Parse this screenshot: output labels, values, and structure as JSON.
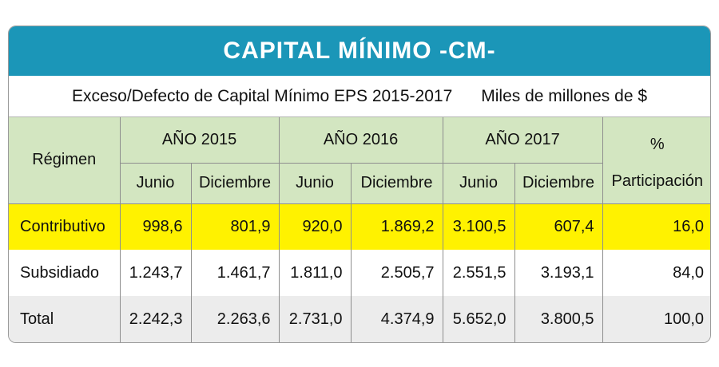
{
  "title": "CAPITAL MÍNIMO -CM-",
  "subtitle": "Exceso/Defecto de Capital Mínimo  EPS 2015-2017",
  "unit_note": "Miles de millones de $",
  "headers": {
    "regimen": "Régimen",
    "years": [
      "AÑO 2015",
      "AÑO 2016",
      "AÑO 2017"
    ],
    "periods": [
      "Junio",
      "Diciembre",
      "Junio",
      "Diciembre",
      "Junio",
      "Diciembre"
    ],
    "pct_symbol": "%",
    "participation": "Participación"
  },
  "rows": [
    {
      "label": "Contributivo",
      "values": [
        "998,6",
        "801,9",
        "920,0",
        "1.869,2",
        "3.100,5",
        "607,4"
      ],
      "pct": "16,0"
    },
    {
      "label": "Subsidiado",
      "values": [
        "1.243,7",
        "1.461,7",
        "1.811,0",
        "2.505,7",
        "2.551,5",
        "3.193,1"
      ],
      "pct": "84,0"
    },
    {
      "label": "Total",
      "values": [
        "2.242,3",
        "2.263,6",
        "2.731,0",
        "4.374,9",
        "5.652,0",
        "3.800,5"
      ],
      "pct": "100,0"
    }
  ],
  "colors": {
    "title_bg": "#1b96b8",
    "header_bg": "#d3e6c1",
    "highlight_row": "#fff200",
    "total_row": "#ececec"
  }
}
